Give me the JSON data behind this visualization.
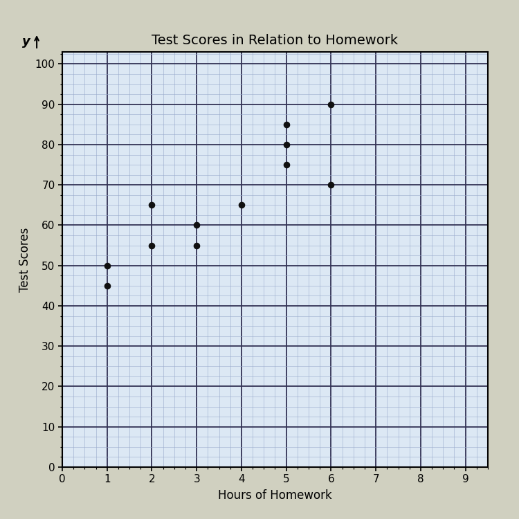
{
  "title": "Test Scores in Relation to Homework",
  "xlabel": "Hours of Homework",
  "ylabel_side": "Test Scores",
  "ylabel_top": "y",
  "scatter_x": [
    1,
    1,
    2,
    2,
    3,
    3,
    4,
    5,
    5,
    5,
    6,
    6
  ],
  "scatter_y": [
    50,
    45,
    65,
    55,
    60,
    55,
    65,
    85,
    80,
    75,
    90,
    70
  ],
  "xlim": [
    0,
    9.5
  ],
  "ylim": [
    0,
    103
  ],
  "xticks": [
    0,
    1,
    2,
    3,
    4,
    5,
    6,
    7,
    8,
    9
  ],
  "yticks": [
    0,
    10,
    20,
    30,
    40,
    50,
    60,
    70,
    80,
    90,
    100
  ],
  "dot_color": "#111111",
  "dot_size": 35,
  "grid_major_color": "#333355",
  "grid_minor_color": "#99aacc",
  "bg_color": "#dce8f4",
  "fig_bg_color": "#d0d0c0",
  "title_fontsize": 14,
  "label_fontsize": 12,
  "tick_fontsize": 11
}
